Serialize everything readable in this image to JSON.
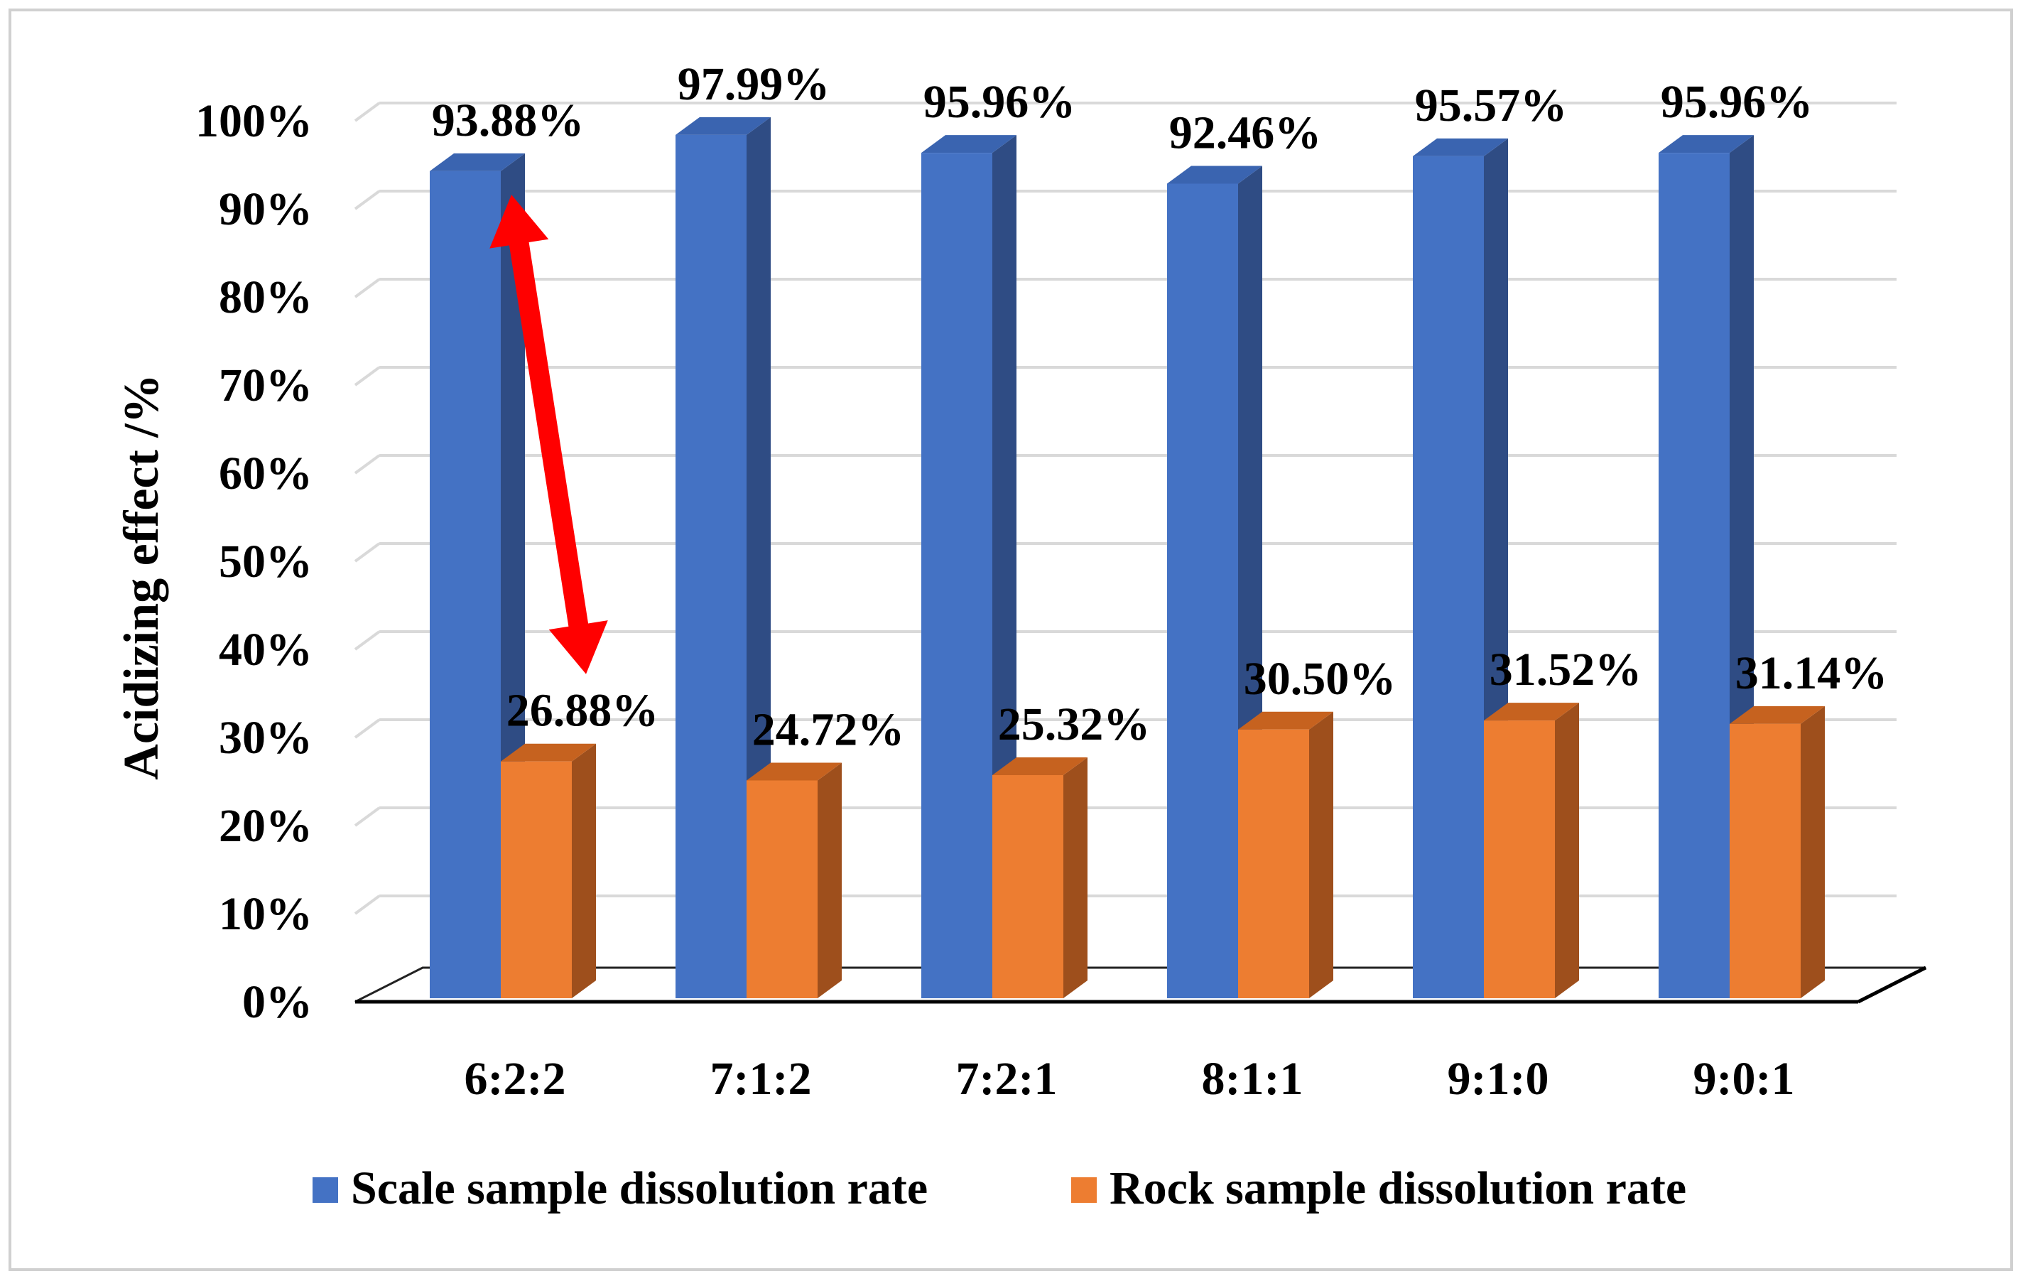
{
  "chart_data": {
    "type": "bar",
    "style": "3d-clustered-column",
    "title": "",
    "xlabel": "",
    "ylabel": "Acidizing effect /%",
    "ylim": [
      0,
      100
    ],
    "y_ticks": [
      "0%",
      "10%",
      "20%",
      "30%",
      "40%",
      "50%",
      "60%",
      "70%",
      "80%",
      "90%",
      "100%"
    ],
    "grid": true,
    "legend_position": "bottom",
    "categories": [
      "6:2:2",
      "7:1:2",
      "7:2:1",
      "8:1:1",
      "9:1:0",
      "9:0:1"
    ],
    "series": [
      {
        "name": "Scale sample dissolution rate",
        "color": "#4472C4",
        "side_color": "#2F4C84",
        "top_color": "#3A64B0",
        "values": [
          93.88,
          97.99,
          95.96,
          92.46,
          95.57,
          95.96
        ],
        "labels": [
          "93.88%",
          "97.99%",
          "95.96%",
          "92.46%",
          "95.57%",
          "95.96%"
        ]
      },
      {
        "name": "Rock sample dissolution rate",
        "color": "#ED7D31",
        "side_color": "#9E4F1C",
        "top_color": "#C6621F",
        "values": [
          26.88,
          24.72,
          25.32,
          30.5,
          31.52,
          31.14
        ],
        "labels": [
          "26.88%",
          "24.72%",
          "25.32%",
          "30.50%",
          "31.52%",
          "31.14%"
        ]
      }
    ],
    "annotations": [
      {
        "type": "double-headed-arrow",
        "color": "#FF0000",
        "category": "6:2:2",
        "from_value": 90,
        "to_value": 38
      }
    ]
  }
}
